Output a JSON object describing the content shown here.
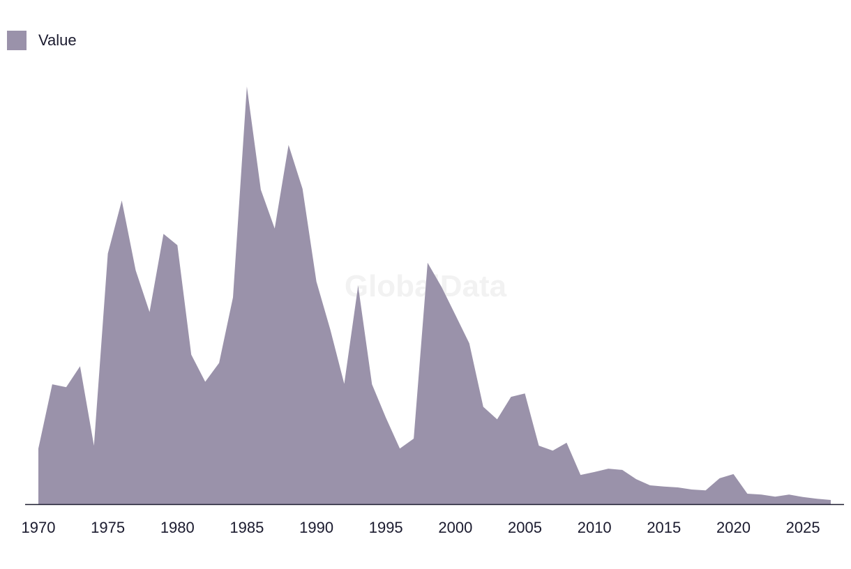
{
  "legend": {
    "label": "Value",
    "color": "#9a92aa"
  },
  "watermark": "GlobalData",
  "colors": {
    "area": "#9a92aa",
    "axis": "#1a1a2e",
    "text": "#1a1a2e"
  },
  "chart_data": {
    "type": "area",
    "title": "",
    "xlabel": "",
    "ylabel": "",
    "grid": false,
    "legend_position": "top-left",
    "xlim": [
      1968.9,
      2028
    ],
    "ylim": [
      0,
      100
    ],
    "x_ticks": [
      1970,
      1975,
      1980,
      1985,
      1990,
      1995,
      2000,
      2005,
      2010,
      2015,
      2020,
      2025
    ],
    "series": [
      {
        "name": "Value",
        "x": [
          1970,
          1971,
          1972,
          1973,
          1974,
          1975,
          1976,
          1977,
          1978,
          1979,
          1980,
          1981,
          1982,
          1983,
          1984,
          1985,
          1986,
          1987,
          1988,
          1989,
          1990,
          1991,
          1992,
          1993,
          1994,
          1995,
          1996,
          1997,
          1998,
          1999,
          2000,
          2001,
          2002,
          2003,
          2004,
          2005,
          2006,
          2007,
          2008,
          2009,
          2010,
          2011,
          2012,
          2013,
          2014,
          2015,
          2016,
          2017,
          2018,
          2019,
          2020,
          2021,
          2022,
          2023,
          2024,
          2025,
          2026,
          2027
        ],
        "values": [
          13.3,
          28.7,
          28.0,
          33.0,
          14.0,
          60.0,
          72.7,
          56.0,
          46.0,
          64.7,
          62.0,
          35.8,
          29.3,
          33.8,
          49.5,
          100.0,
          75.3,
          66.0,
          86.0,
          75.5,
          53.3,
          41.8,
          28.8,
          52.3,
          28.7,
          20.7,
          13.3,
          15.7,
          57.8,
          52.0,
          45.3,
          38.5,
          23.3,
          20.3,
          25.7,
          26.5,
          14.0,
          12.8,
          14.7,
          7.0,
          7.7,
          8.5,
          8.2,
          6.0,
          4.5,
          4.2,
          4.0,
          3.5,
          3.3,
          6.2,
          7.2,
          2.5,
          2.3,
          1.8,
          2.3,
          1.7,
          1.3,
          1.0
        ]
      }
    ]
  }
}
